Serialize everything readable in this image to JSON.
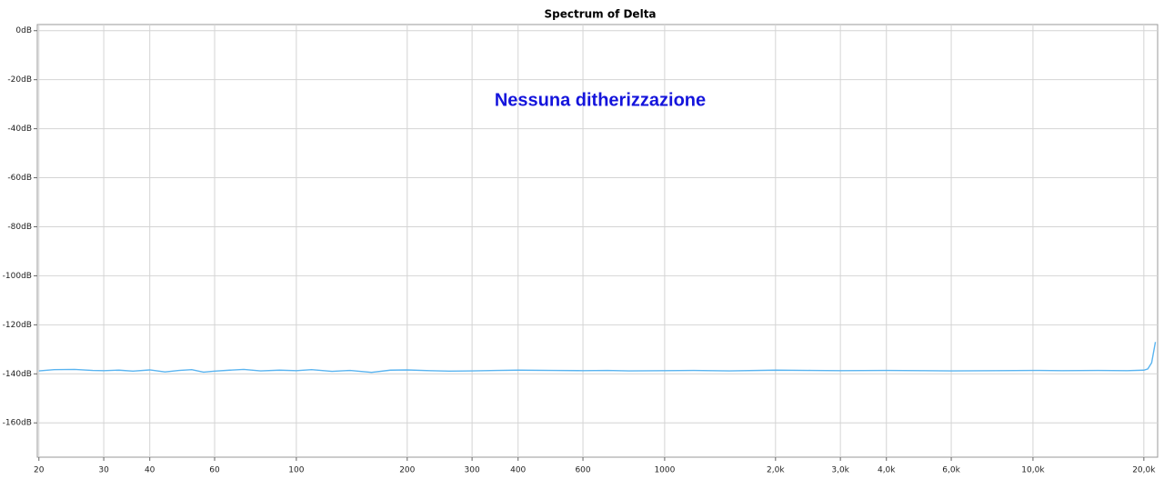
{
  "chart_data": {
    "type": "line",
    "title": "Spectrum of Delta",
    "annotations": [
      "Nessuna ditherizzazione"
    ],
    "xscale": "log",
    "grid": true,
    "xlim": [
      19.8,
      21800
    ],
    "ylim": [
      -174,
      2.5
    ],
    "xticks": [
      20,
      30,
      40,
      60,
      100,
      200,
      300,
      400,
      600,
      1000,
      {
        "value": 2000,
        "label": "2,0k"
      },
      {
        "value": 3000,
        "label": "3,0k"
      },
      {
        "value": 4000,
        "label": "4,0k"
      },
      {
        "value": 6000,
        "label": "6,0k"
      },
      {
        "value": 10000,
        "label": "10,0k"
      },
      {
        "value": 20000,
        "label": "20,0k"
      }
    ],
    "yticks": [
      {
        "value": 0,
        "label": "0dB"
      },
      {
        "value": -20,
        "label": "-20dB"
      },
      {
        "value": -40,
        "label": "-40dB"
      },
      {
        "value": -60,
        "label": "-60dB"
      },
      {
        "value": -80,
        "label": "-80dB"
      },
      {
        "value": -100,
        "label": "-100dB"
      },
      {
        "value": -120,
        "label": "-120dB"
      },
      {
        "value": -140,
        "label": "-140dB"
      },
      {
        "value": -160,
        "label": "-160dB"
      }
    ],
    "x": [
      20,
      22,
      25,
      28,
      30,
      33,
      36,
      40,
      44,
      48,
      52,
      56,
      60,
      66,
      72,
      80,
      90,
      100,
      110,
      125,
      140,
      160,
      180,
      200,
      230,
      260,
      300,
      350,
      400,
      500,
      600,
      700,
      800,
      1000,
      1200,
      1500,
      2000,
      2500,
      3000,
      4000,
      5000,
      6000,
      8000,
      10000,
      12000,
      15000,
      18000,
      20000,
      20500,
      21000,
      21500
    ],
    "series": [
      {
        "color": "#5ab4f0",
        "values": [
          -138.8,
          -138.3,
          -138.2,
          -138.6,
          -138.7,
          -138.5,
          -138.9,
          -138.4,
          -139.2,
          -138.6,
          -138.3,
          -139.3,
          -138.9,
          -138.5,
          -138.2,
          -138.8,
          -138.5,
          -138.7,
          -138.3,
          -139.0,
          -138.6,
          -139.4,
          -138.5,
          -138.4,
          -138.7,
          -138.9,
          -138.8,
          -138.6,
          -138.5,
          -138.6,
          -138.7,
          -138.6,
          -138.8,
          -138.7,
          -138.6,
          -138.8,
          -138.5,
          -138.6,
          -138.7,
          -138.6,
          -138.7,
          -138.8,
          -138.7,
          -138.6,
          -138.7,
          -138.6,
          -138.7,
          -138.5,
          -138.0,
          -135.5,
          -127.0
        ]
      }
    ]
  }
}
